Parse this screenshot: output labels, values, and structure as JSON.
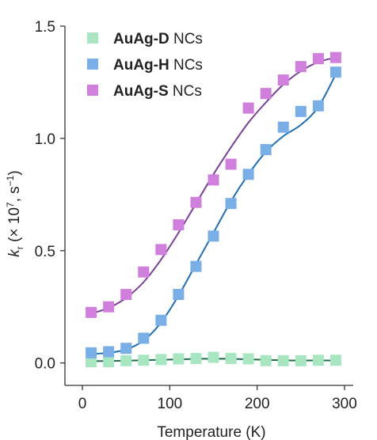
{
  "chart_data": {
    "type": "scatter",
    "xlabel": "Temperature (K)",
    "ylabel": {
      "k": "k",
      "sub": "r",
      "rest1": " (× 10",
      "sup1": "7",
      "rest2": ", s",
      "sup2": "−1",
      "rest3": ")"
    },
    "xlim": [
      -20,
      310
    ],
    "ylim": [
      -0.1,
      1.5
    ],
    "xticks": [
      0,
      100,
      200,
      300
    ],
    "xtick_labels": [
      "0",
      "100",
      "200",
      "300"
    ],
    "yticks": [
      0.0,
      0.5,
      1.0,
      1.5
    ],
    "ytick_labels": [
      "0.0",
      "0.5",
      "1.0",
      "1.5"
    ],
    "grid": false,
    "legend_position": "top-left",
    "series": [
      {
        "name_bold": "AuAg-D",
        "name_rest": " NCs",
        "marker_color": "#a8e6c1",
        "line_color": "#1f6b4a",
        "x": [
          10,
          30,
          50,
          70,
          90,
          110,
          130,
          150,
          170,
          190,
          210,
          230,
          250,
          270,
          290
        ],
        "y": [
          0.005,
          0.005,
          0.01,
          0.012,
          0.015,
          0.018,
          0.02,
          0.025,
          0.02,
          0.018,
          0.01,
          0.01,
          0.01,
          0.012,
          0.012
        ],
        "fit_y": [
          0.008,
          0.009,
          0.01,
          0.012,
          0.014,
          0.016,
          0.018,
          0.019,
          0.018,
          0.016,
          0.014,
          0.012,
          0.011,
          0.011,
          0.011
        ]
      },
      {
        "name_bold": "AuAg-H",
        "name_rest": " NCs",
        "marker_color": "#7aaee6",
        "line_color": "#1f6fb5",
        "x": [
          10,
          30,
          50,
          70,
          90,
          110,
          130,
          150,
          170,
          190,
          210,
          230,
          250,
          270,
          290
        ],
        "y": [
          0.045,
          0.05,
          0.065,
          0.11,
          0.19,
          0.305,
          0.43,
          0.565,
          0.71,
          0.84,
          0.95,
          1.05,
          1.12,
          1.145,
          1.295
        ],
        "fit_y": [
          0.04,
          0.045,
          0.06,
          0.1,
          0.18,
          0.3,
          0.44,
          0.58,
          0.72,
          0.84,
          0.94,
          1.01,
          1.06,
          1.14,
          1.285
        ]
      },
      {
        "name_bold": "AuAg-S",
        "name_rest": " NCs",
        "marker_color": "#d080dc",
        "line_color": "#7a3f9a",
        "x": [
          10,
          30,
          50,
          70,
          90,
          110,
          130,
          150,
          170,
          190,
          210,
          230,
          250,
          270,
          290
        ],
        "y": [
          0.225,
          0.25,
          0.305,
          0.405,
          0.505,
          0.615,
          0.715,
          0.815,
          0.885,
          1.135,
          1.2,
          1.26,
          1.32,
          1.355,
          1.36
        ],
        "fit_y": [
          0.22,
          0.245,
          0.29,
          0.36,
          0.46,
          0.58,
          0.71,
          0.84,
          0.96,
          1.07,
          1.16,
          1.24,
          1.3,
          1.34,
          1.36
        ]
      }
    ]
  }
}
